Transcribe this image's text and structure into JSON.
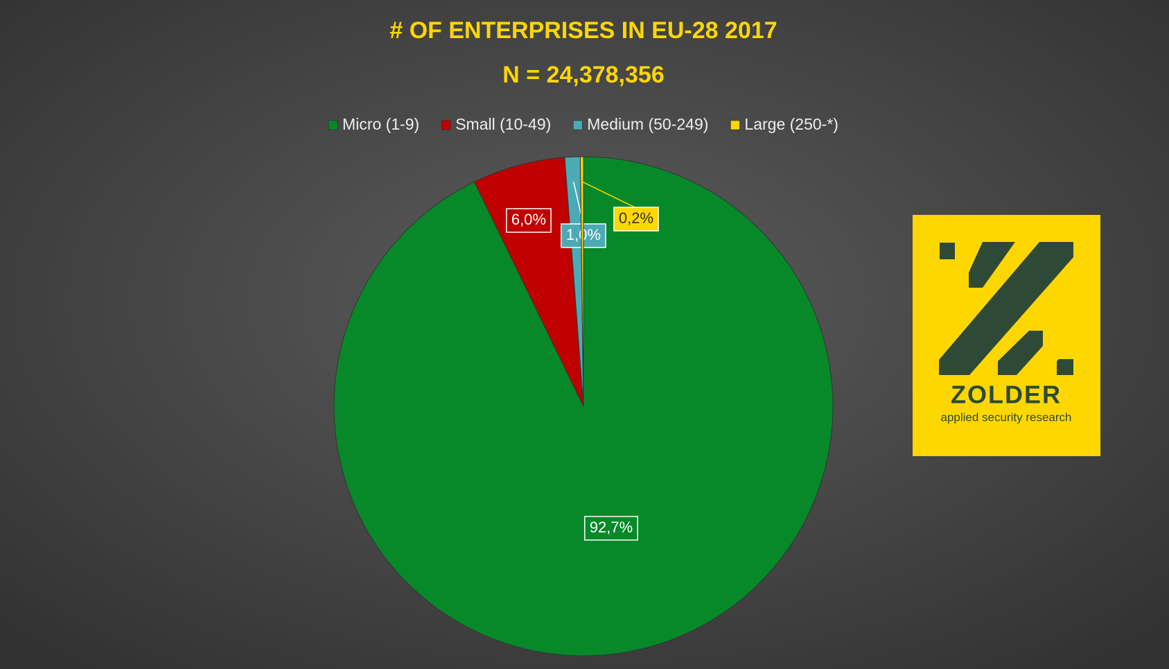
{
  "chart_data": {
    "type": "pie",
    "title": "# OF ENTERPRISES IN EU-28 2017",
    "subtitle": "N = 24,378,356",
    "series": [
      {
        "name": "Micro (1-9)",
        "color": "#07892a",
        "values": [
          92.7
        ],
        "value_labels": [
          "92,7%"
        ]
      },
      {
        "name": "Small (10-49)",
        "color": "#c00000",
        "values": [
          6.0
        ],
        "value_labels": [
          "6,0%"
        ]
      },
      {
        "name": "Medium (50-249)",
        "color": "#4aabb5",
        "values": [
          1.0
        ],
        "value_labels": [
          "1,0%"
        ]
      },
      {
        "name": "Large (250-*)",
        "color": "#ffd700",
        "values": [
          0.2
        ],
        "value_labels": [
          "0,2%"
        ]
      }
    ],
    "legend": "top"
  },
  "logo": {
    "name": "ZOLDER",
    "tagline": "applied security research"
  }
}
